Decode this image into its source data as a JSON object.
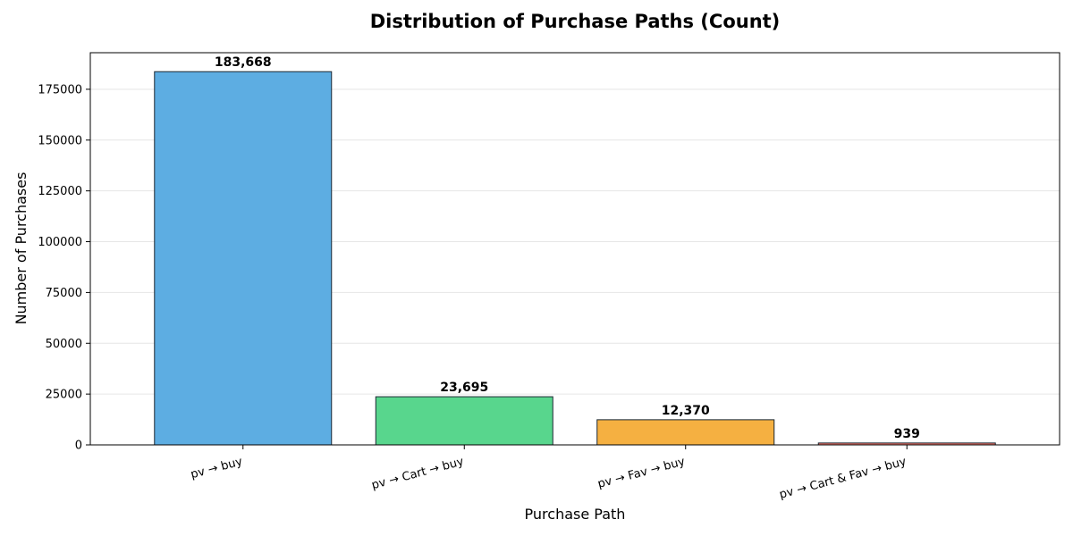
{
  "chart_data": {
    "type": "bar",
    "title": "Distribution of Purchase Paths (Count)",
    "xlabel": "Purchase Path",
    "ylabel": "Number of Purchases",
    "categories": [
      "pv → buy",
      "pv → Cart → buy",
      "pv → Fav → buy",
      "pv → Cart & Fav → buy"
    ],
    "values": [
      183668,
      23695,
      12370,
      939
    ],
    "value_labels": [
      "183,668",
      "23,695",
      "12,370",
      "939"
    ],
    "colors": [
      "#5dade2",
      "#58d68d",
      "#f5b041",
      "#ec7063"
    ],
    "ylim": [
      0,
      193000
    ],
    "yticks": [
      0,
      25000,
      50000,
      75000,
      100000,
      125000,
      150000,
      175000
    ],
    "grid": true,
    "legend": "none"
  }
}
